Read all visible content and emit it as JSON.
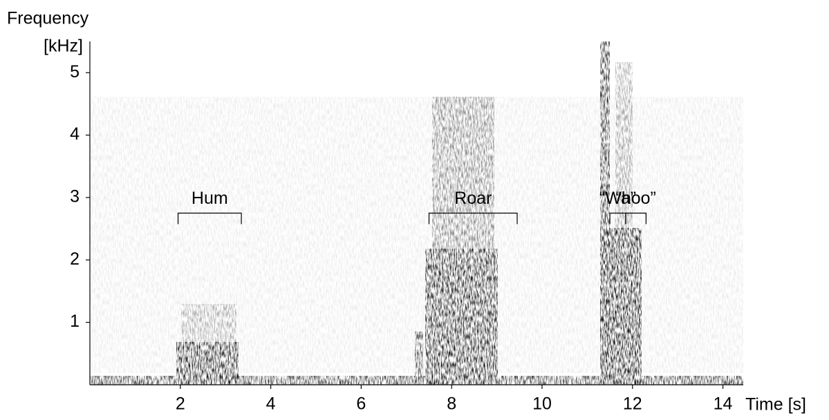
{
  "chart_data": {
    "type": "spectrogram",
    "y_label": [
      "Frequency",
      "[kHz]"
    ],
    "x_label": "Time [s]",
    "xlim": [
      0,
      14.45
    ],
    "ylim": [
      0,
      5.5
    ],
    "xticks": [
      2,
      4,
      6,
      8,
      10,
      12,
      14
    ],
    "yticks": [
      1,
      2,
      3,
      4,
      5
    ],
    "color": "#000000",
    "annotations": [
      {
        "text": "Hum",
        "start": 1.95,
        "end": 3.35,
        "y": 2.75
      },
      {
        "text": "Roar",
        "start": 7.5,
        "end": 9.45,
        "y": 2.75
      },
      {
        "text": "“Wa”",
        "start": 11.5,
        "end": 11.85,
        "y": 2.75
      },
      {
        "text": "“hoo”",
        "start": 11.85,
        "end": 12.3,
        "y": 2.75
      }
    ]
  }
}
